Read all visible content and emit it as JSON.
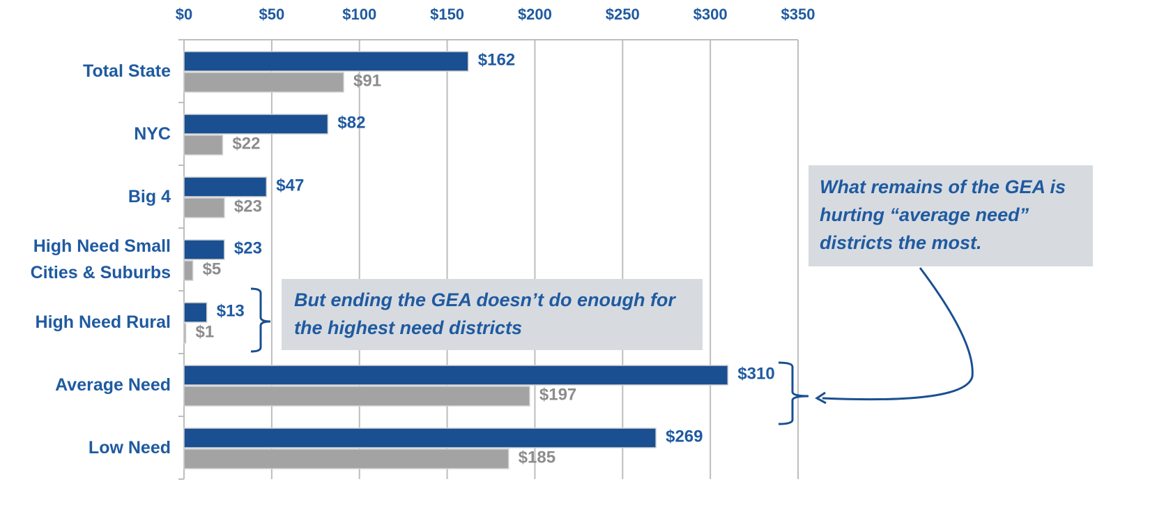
{
  "chart_data": {
    "type": "bar",
    "orientation": "horizontal",
    "categories": [
      "Total State",
      "NYC",
      "Big 4",
      "High Need Small Cities & Suburbs",
      "High Need Rural",
      "Average Need",
      "Low Need"
    ],
    "series": [
      {
        "color": "#1a4f91",
        "values": [
          162,
          82,
          47,
          23,
          13,
          310,
          269
        ],
        "value_labels": [
          "$162",
          "$82",
          "$47",
          "$23",
          "$13",
          "$310",
          "$269"
        ],
        "label_color": "#1f5aa0"
      },
      {
        "color": "#a3a3a3",
        "values": [
          91,
          22,
          23,
          5,
          1,
          197,
          185
        ],
        "value_labels": [
          "$91",
          "$22",
          "$23",
          "$5",
          "$1",
          "$197",
          "$185"
        ],
        "label_color": "#8c8c8c"
      }
    ],
    "xlim": [
      0,
      350
    ],
    "xticks": [
      {
        "value": 0,
        "label": "$0"
      },
      {
        "value": 50,
        "label": "$50"
      },
      {
        "value": 100,
        "label": "$100"
      },
      {
        "value": 150,
        "label": "$150"
      },
      {
        "value": 200,
        "label": "$200"
      },
      {
        "value": 250,
        "label": "$250"
      },
      {
        "value": 300,
        "label": "$300"
      },
      {
        "value": 350,
        "label": "$350"
      }
    ],
    "grid": true,
    "annotations": [
      "What remains of the GEA is hurting “average need” districts the most.",
      "But ending the GEA doesn’t do enough for the highest need districts"
    ]
  }
}
